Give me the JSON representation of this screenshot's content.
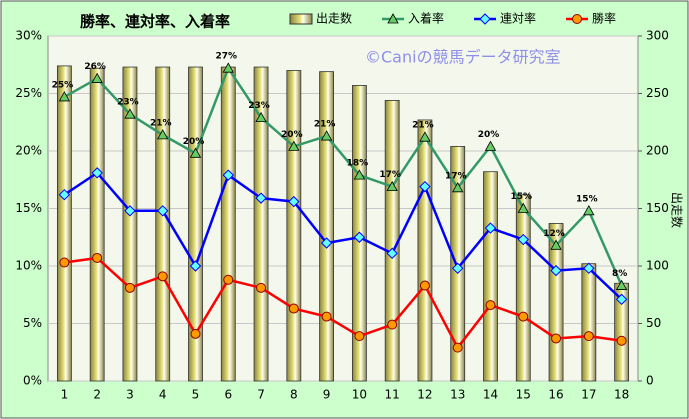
{
  "chart_data": {
    "type": "bar-line",
    "title": "勝率、連対率、入着率",
    "watermark": "©Caniの競馬データ研究室",
    "y2label": "出走数",
    "categories": [
      "1",
      "2",
      "3",
      "4",
      "5",
      "6",
      "7",
      "8",
      "9",
      "10",
      "11",
      "12",
      "13",
      "14",
      "15",
      "16",
      "17",
      "18"
    ],
    "ylim": [
      0,
      30
    ],
    "yticks": [
      {
        "value": 0,
        "label": "0%"
      },
      {
        "value": 5,
        "label": "5%"
      },
      {
        "value": 10,
        "label": "10%"
      },
      {
        "value": 15,
        "label": "15%"
      },
      {
        "value": 20,
        "label": "20%"
      },
      {
        "value": 25,
        "label": "25%"
      },
      {
        "value": 30,
        "label": "30%"
      }
    ],
    "y2lim": [
      0,
      300
    ],
    "y2ticks": [
      0,
      50,
      100,
      150,
      200,
      250,
      300
    ],
    "grid": true,
    "legend": "top",
    "series": [
      {
        "name": "出走数",
        "type": "bar",
        "axis": "y2",
        "color": "#e8e27a",
        "values": [
          274,
          272,
          273,
          273,
          273,
          273,
          273,
          270,
          269,
          257,
          244,
          227,
          204,
          182,
          162,
          137,
          102,
          85
        ]
      },
      {
        "name": "入着率",
        "type": "line",
        "color": "#339966",
        "marker": "triangle",
        "marker_color": "#66cc66",
        "values": [
          24.7,
          26.3,
          23.2,
          21.4,
          19.8,
          27.2,
          22.9,
          20.4,
          21.3,
          17.9,
          16.9,
          21.2,
          16.8,
          20.4,
          15.0,
          11.8,
          14.8,
          8.3
        ],
        "value_labels": [
          "25%",
          "26%",
          "23%",
          "21%",
          "20%",
          "27%",
          "23%",
          "20%",
          "21%",
          "18%",
          "17%",
          "21%",
          "17%",
          "20%",
          "15%",
          "12%",
          "15%",
          "8%"
        ]
      },
      {
        "name": "連対率",
        "type": "line",
        "color": "#0000ff",
        "marker": "diamond",
        "marker_color": "#66ffff",
        "values": [
          16.2,
          18.1,
          14.8,
          14.8,
          10.0,
          17.9,
          15.9,
          15.6,
          12.0,
          12.5,
          11.1,
          16.9,
          9.8,
          13.3,
          12.3,
          9.6,
          9.8,
          7.1
        ]
      },
      {
        "name": "勝率",
        "type": "line",
        "color": "#ff0000",
        "marker": "circle",
        "marker_color": "#ff9900",
        "values": [
          10.3,
          10.7,
          8.1,
          9.1,
          4.1,
          8.8,
          8.1,
          6.3,
          5.6,
          3.9,
          4.9,
          8.3,
          2.9,
          6.6,
          5.6,
          3.7,
          3.9,
          3.5
        ]
      }
    ]
  }
}
